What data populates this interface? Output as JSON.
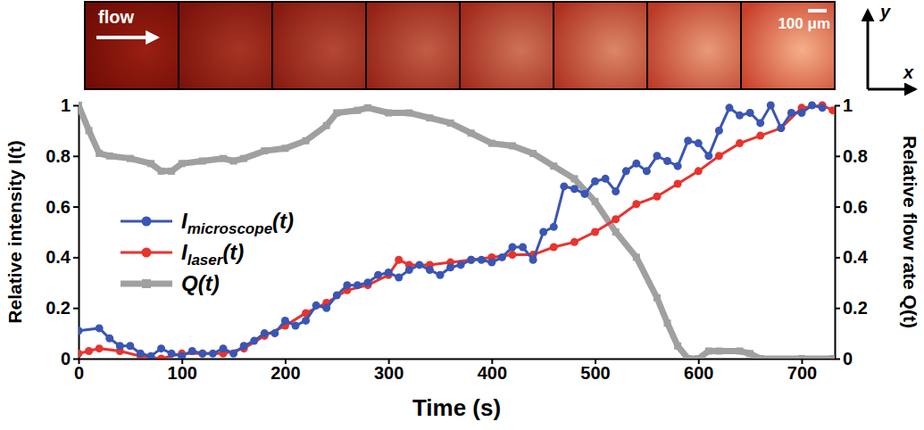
{
  "chart_data": {
    "type": "line",
    "x_label": "Time (s)",
    "y_label": "Relative intensity I(t)",
    "y2_label": "Relative flow rate Q(t)",
    "annotations": [
      "flow",
      "100 μm",
      "y",
      "x"
    ],
    "xlim": [
      0,
      732
    ],
    "xticks": [
      0,
      100,
      200,
      300,
      400,
      500,
      600,
      700
    ],
    "ylim": [
      0,
      1
    ],
    "yticks": [
      0,
      0.2,
      0.4,
      0.6,
      0.8,
      1
    ],
    "y2lim": [
      0,
      1
    ],
    "y2ticks": [
      0,
      0.2,
      0.4,
      0.6,
      0.8,
      1
    ],
    "grid": false,
    "legend": "left",
    "series": [
      {
        "name": "Imicroscope(t)",
        "color": "#3a55b4",
        "marker": "circle",
        "line_style": "solid",
        "x": [
          0,
          20,
          30,
          40,
          50,
          60,
          70,
          80,
          90,
          100,
          110,
          120,
          130,
          140,
          150,
          160,
          170,
          180,
          190,
          200,
          210,
          220,
          230,
          240,
          250,
          260,
          270,
          280,
          290,
          300,
          310,
          320,
          330,
          340,
          350,
          360,
          370,
          380,
          390,
          400,
          410,
          420,
          430,
          440,
          450,
          460,
          470,
          480,
          490,
          500,
          510,
          520,
          530,
          540,
          550,
          560,
          570,
          580,
          590,
          600,
          610,
          620,
          630,
          640,
          650,
          660,
          670,
          680,
          690,
          700,
          710,
          720
        ],
        "values": [
          0.11,
          0.12,
          0.08,
          0.05,
          0.05,
          0.02,
          0.01,
          0.04,
          0.02,
          0.01,
          0.03,
          0.02,
          0.02,
          0.04,
          0.02,
          0.05,
          0.07,
          0.1,
          0.1,
          0.15,
          0.13,
          0.15,
          0.21,
          0.2,
          0.25,
          0.29,
          0.29,
          0.3,
          0.33,
          0.34,
          0.32,
          0.35,
          0.37,
          0.35,
          0.33,
          0.36,
          0.37,
          0.39,
          0.39,
          0.38,
          0.4,
          0.44,
          0.44,
          0.39,
          0.5,
          0.52,
          0.68,
          0.67,
          0.65,
          0.7,
          0.71,
          0.66,
          0.74,
          0.77,
          0.74,
          0.8,
          0.78,
          0.76,
          0.86,
          0.85,
          0.8,
          0.9,
          0.99,
          0.96,
          0.97,
          0.93,
          1.0,
          0.91,
          0.97,
          0.97,
          1.0,
          0.99
        ]
      },
      {
        "name": "Ilaser(t)",
        "color": "#e8332e",
        "marker": "circle",
        "line_style": "solid",
        "x": [
          0,
          10,
          20,
          40,
          60,
          80,
          100,
          120,
          140,
          160,
          180,
          200,
          220,
          240,
          260,
          280,
          300,
          310,
          320,
          340,
          360,
          380,
          400,
          420,
          440,
          460,
          480,
          500,
          520,
          540,
          560,
          580,
          600,
          620,
          640,
          660,
          680,
          700,
          720,
          730
        ],
        "values": [
          0.02,
          0.03,
          0.04,
          0.03,
          0.01,
          0.0,
          0.02,
          0.02,
          0.02,
          0.04,
          0.09,
          0.13,
          0.18,
          0.22,
          0.27,
          0.29,
          0.33,
          0.39,
          0.37,
          0.37,
          0.38,
          0.39,
          0.4,
          0.41,
          0.41,
          0.44,
          0.46,
          0.5,
          0.55,
          0.61,
          0.64,
          0.69,
          0.74,
          0.8,
          0.85,
          0.88,
          0.91,
          0.99,
          1.0,
          0.98
        ]
      },
      {
        "name": "Q(t)",
        "color": "#a0a0a0",
        "marker": "square",
        "line_style": "solid",
        "axis": "y2",
        "x": [
          0,
          10,
          20,
          30,
          50,
          70,
          80,
          90,
          100,
          120,
          140,
          150,
          160,
          180,
          200,
          220,
          240,
          250,
          270,
          280,
          300,
          320,
          340,
          360,
          380,
          400,
          420,
          440,
          460,
          480,
          500,
          520,
          540,
          560,
          570,
          580,
          590,
          600,
          610,
          620,
          640,
          650,
          660,
          700,
          730
        ],
        "values": [
          1.0,
          0.9,
          0.81,
          0.8,
          0.79,
          0.77,
          0.74,
          0.74,
          0.77,
          0.78,
          0.79,
          0.78,
          0.79,
          0.82,
          0.83,
          0.86,
          0.92,
          0.97,
          0.98,
          0.99,
          0.97,
          0.97,
          0.95,
          0.93,
          0.89,
          0.85,
          0.84,
          0.81,
          0.76,
          0.71,
          0.62,
          0.5,
          0.4,
          0.24,
          0.14,
          0.05,
          0.0,
          0.0,
          0.03,
          0.03,
          0.03,
          0.02,
          0.0,
          0.0,
          0.0
        ]
      }
    ]
  }
}
